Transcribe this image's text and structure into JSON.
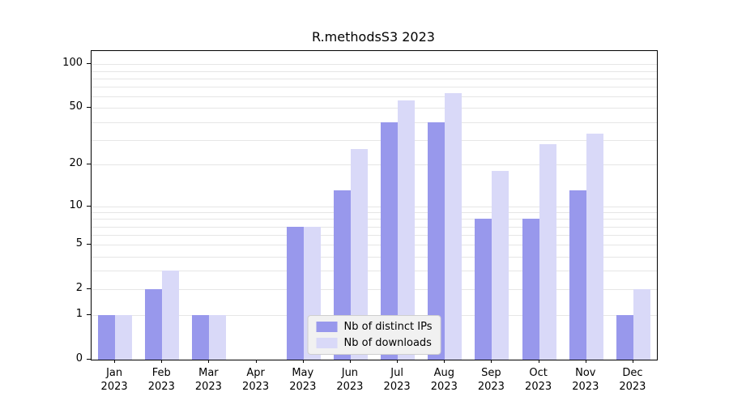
{
  "title": "R.methodsS3 2023",
  "chart_data": {
    "type": "bar",
    "title": "R.methodsS3 2023",
    "yscale": "log1p",
    "ylim": [
      0,
      123
    ],
    "yticks": [
      0,
      1,
      2,
      5,
      10,
      20,
      50,
      100
    ],
    "grid": "horizontal",
    "legend_position": "lower center",
    "categories": [
      "Jan 2023",
      "Feb 2023",
      "Mar 2023",
      "Apr 2023",
      "May 2023",
      "Jun 2023",
      "Jul 2023",
      "Aug 2023",
      "Sep 2023",
      "Oct 2023",
      "Nov 2023",
      "Dec 2023"
    ],
    "series": [
      {
        "name": "Nb of distinct IPs",
        "color": "#9898ec",
        "values": [
          1,
          2,
          1,
          0,
          7,
          13,
          40,
          40,
          8,
          8,
          13,
          1
        ]
      },
      {
        "name": "Nb of downloads",
        "color": "#d9d9f8",
        "values": [
          1,
          3,
          1,
          0,
          7,
          26,
          56,
          63,
          18,
          28,
          33,
          2
        ]
      }
    ]
  },
  "colors": {
    "grid": "#e6e6e6",
    "axis": "#000000",
    "legend_bg": "#f1f1f1",
    "legend_border": "#cfcfcf"
  }
}
